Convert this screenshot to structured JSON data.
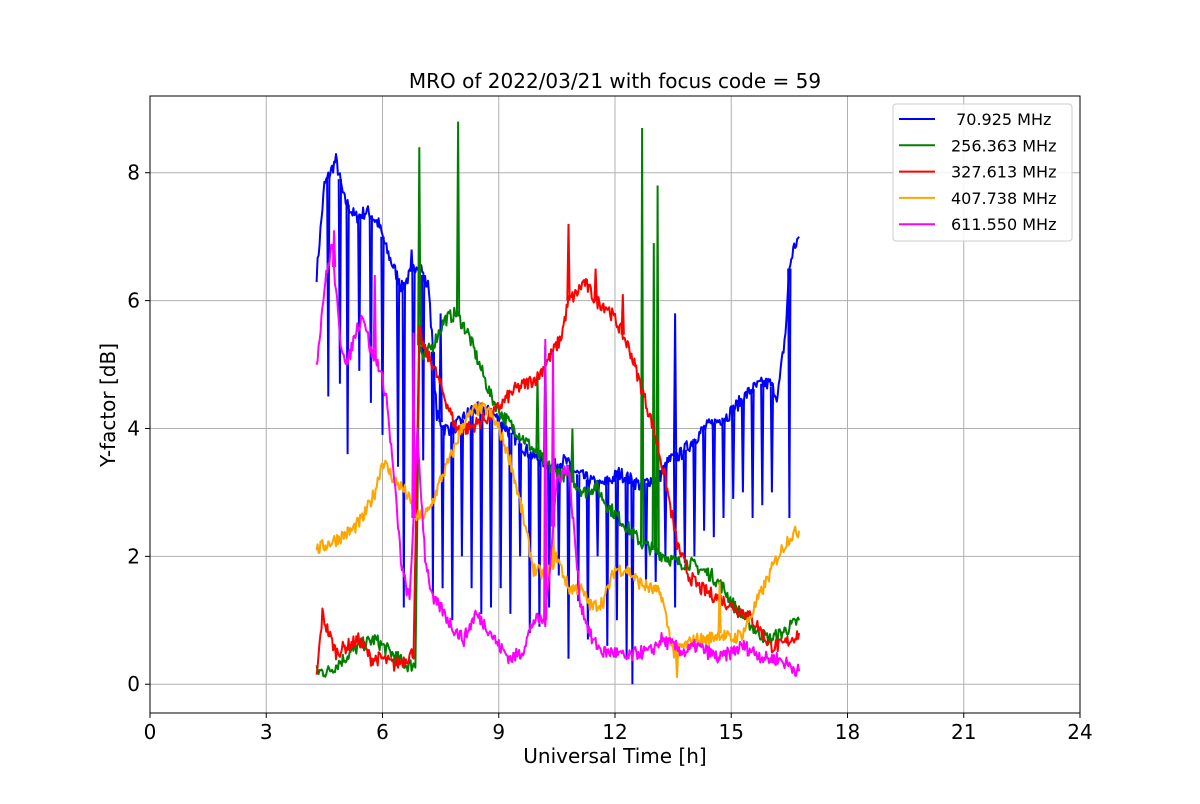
{
  "chart_data": {
    "type": "line",
    "title": "MRO of 2022/03/21 with focus code = 59",
    "xlabel": "Universal Time [h]",
    "ylabel": "Y-factor [dB]",
    "xlim": [
      0,
      24
    ],
    "ylim": [
      -0.45,
      9.2
    ],
    "xticks": [
      0,
      3,
      6,
      9,
      12,
      15,
      18,
      21,
      24
    ],
    "yticks": [
      0,
      2,
      4,
      6,
      8
    ],
    "grid": true,
    "legend_position": "top-right",
    "series": [
      {
        "name": " 70.925 MHz",
        "color": "#0000ff",
        "x": [
          4.3,
          4.5,
          4.8,
          5.0,
          5.3,
          5.6,
          5.9,
          6.1,
          6.3,
          6.5,
          6.7,
          6.9,
          7.0,
          7.1,
          7.2,
          7.4,
          7.6,
          7.8,
          8.0,
          8.3,
          8.6,
          8.9,
          9.2,
          9.5,
          9.8,
          10.1,
          10.4,
          10.7,
          11.0,
          11.3,
          11.6,
          11.9,
          12.1,
          12.4,
          12.7,
          12.9,
          13.1,
          13.4,
          13.7,
          14.0,
          14.3,
          14.6,
          14.9,
          15.2,
          15.5,
          15.8,
          16.0,
          16.1,
          16.2,
          16.4,
          16.5,
          16.6,
          16.75
        ],
        "y": [
          6.4,
          7.8,
          8.2,
          7.6,
          7.3,
          7.4,
          7.2,
          6.8,
          6.5,
          6.2,
          6.4,
          6.6,
          6.5,
          6.3,
          6.2,
          4.2,
          4.0,
          4.0,
          4.1,
          4.3,
          4.3,
          4.2,
          4.0,
          3.8,
          3.6,
          3.5,
          3.4,
          3.5,
          3.3,
          3.2,
          3.1,
          3.2,
          3.3,
          3.2,
          3.1,
          3.2,
          3.2,
          3.5,
          3.6,
          3.8,
          4.0,
          4.1,
          4.2,
          4.4,
          4.6,
          4.7,
          4.7,
          4.6,
          4.5,
          5.5,
          6.5,
          6.8,
          7.0
        ],
        "dips": [
          [
            4.6,
            4.5
          ],
          [
            4.9,
            4.7
          ],
          [
            5.1,
            3.6
          ],
          [
            5.4,
            4.9
          ],
          [
            5.7,
            4.4
          ],
          [
            6.0,
            3.9
          ],
          [
            6.4,
            3.4
          ],
          [
            6.55,
            1.2
          ],
          [
            6.8,
            2.7
          ],
          [
            7.05,
            3.5
          ],
          [
            7.3,
            1.4
          ],
          [
            7.55,
            1.5
          ],
          [
            7.8,
            1.0
          ],
          [
            8.05,
            2.0
          ],
          [
            8.3,
            1.5
          ],
          [
            8.55,
            1.1
          ],
          [
            8.8,
            1.2
          ],
          [
            9.05,
            1.5
          ],
          [
            9.3,
            1.1
          ],
          [
            9.55,
            2.0
          ],
          [
            9.8,
            0.8
          ],
          [
            10.05,
            0.9
          ],
          [
            10.3,
            1.2
          ],
          [
            10.55,
            1.7
          ],
          [
            10.8,
            0.4
          ],
          [
            11.05,
            1.3
          ],
          [
            11.3,
            0.7
          ],
          [
            11.55,
            2.0
          ],
          [
            11.8,
            0.6
          ],
          [
            12.05,
            1.0
          ],
          [
            12.3,
            0.4
          ],
          [
            12.45,
            0.0
          ],
          [
            12.8,
            1.6
          ],
          [
            13.05,
            1.6
          ],
          [
            13.3,
            2.0
          ],
          [
            13.55,
            1.2
          ],
          [
            13.8,
            1.9
          ],
          [
            14.05,
            2.0
          ],
          [
            14.3,
            2.4
          ],
          [
            14.55,
            2.3
          ],
          [
            14.8,
            2.6
          ],
          [
            15.05,
            2.9
          ],
          [
            15.3,
            3.0
          ],
          [
            15.55,
            2.6
          ],
          [
            15.8,
            2.8
          ],
          [
            16.05,
            3.0
          ],
          [
            16.5,
            2.6
          ]
        ],
        "spikes": [
          [
            6.75,
            6.8
          ],
          [
            7.5,
            5.8
          ],
          [
            10.2,
            5.3
          ],
          [
            13.55,
            5.8
          ]
        ]
      },
      {
        "name": "256.363 MHz",
        "color": "#008000",
        "x": [
          4.3,
          4.6,
          5.0,
          5.4,
          5.8,
          6.2,
          6.6,
          6.85,
          6.95,
          7.05,
          7.3,
          7.6,
          7.9,
          8.2,
          8.5,
          8.8,
          9.1,
          9.4,
          9.7,
          10.0,
          10.3,
          10.6,
          10.9,
          11.2,
          11.5,
          11.8,
          12.1,
          12.4,
          12.7,
          13.0,
          13.3,
          13.6,
          13.9,
          14.2,
          14.5,
          14.8,
          15.1,
          15.4,
          15.7,
          16.0,
          16.3,
          16.75
        ],
        "y": [
          0.2,
          0.2,
          0.4,
          0.6,
          0.7,
          0.5,
          0.3,
          0.3,
          5.3,
          5.1,
          5.3,
          5.7,
          5.8,
          5.5,
          5.0,
          4.5,
          4.2,
          4.0,
          3.8,
          3.6,
          3.4,
          3.3,
          3.2,
          3.0,
          3.1,
          2.8,
          2.6,
          2.4,
          2.2,
          2.1,
          2.0,
          1.9,
          1.9,
          1.8,
          1.7,
          1.5,
          1.2,
          1.0,
          0.8,
          0.7,
          0.8,
          1.0
        ],
        "dips": [],
        "spikes": [
          [
            6.95,
            8.4
          ],
          [
            7.95,
            8.8
          ],
          [
            10.0,
            4.8
          ],
          [
            10.9,
            4.0
          ],
          [
            12.7,
            8.7
          ],
          [
            13.1,
            7.8
          ],
          [
            13.0,
            6.9
          ]
        ]
      },
      {
        "name": "327.613 MHz",
        "color": "#ff0000",
        "x": [
          4.3,
          4.45,
          4.55,
          4.8,
          5.1,
          5.4,
          5.7,
          6.0,
          6.3,
          6.6,
          6.8,
          6.95,
          7.1,
          7.3,
          7.6,
          7.9,
          8.2,
          8.5,
          8.8,
          9.1,
          9.4,
          9.7,
          10.0,
          10.3,
          10.6,
          10.8,
          11.0,
          11.2,
          11.5,
          11.8,
          12.1,
          12.4,
          12.7,
          13.0,
          13.3,
          13.6,
          13.9,
          14.2,
          14.5,
          14.8,
          15.1,
          15.4,
          15.7,
          16.0,
          16.3,
          16.75
        ],
        "y": [
          0.1,
          1.1,
          0.9,
          0.5,
          0.6,
          0.7,
          0.4,
          0.4,
          0.3,
          0.4,
          0.5,
          5.5,
          5.2,
          5.0,
          4.5,
          4.0,
          4.0,
          4.1,
          4.2,
          4.4,
          4.6,
          4.7,
          4.8,
          5.1,
          5.4,
          6.0,
          6.1,
          6.3,
          6.0,
          5.9,
          5.6,
          5.2,
          4.6,
          4.0,
          3.2,
          2.2,
          1.7,
          1.5,
          1.4,
          1.3,
          1.2,
          1.1,
          0.9,
          0.6,
          0.6,
          0.8
        ],
        "dips": [],
        "spikes": [
          [
            10.8,
            7.2
          ],
          [
            11.5,
            6.5
          ],
          [
            12.2,
            6.1
          ]
        ]
      },
      {
        "name": "407.738 MHz",
        "color": "#ffa500",
        "x": [
          4.3,
          4.6,
          4.9,
          5.2,
          5.5,
          5.8,
          6.0,
          6.3,
          6.6,
          6.9,
          7.2,
          7.5,
          7.8,
          8.1,
          8.4,
          8.7,
          9.0,
          9.3,
          9.6,
          9.9,
          10.2,
          10.5,
          10.8,
          11.1,
          11.4,
          11.7,
          12.0,
          12.3,
          12.6,
          12.9,
          13.2,
          13.5,
          13.8,
          14.1,
          14.4,
          14.7,
          15.0,
          15.3,
          15.6,
          15.9,
          16.2,
          16.5,
          16.75
        ],
        "y": [
          2.1,
          2.2,
          2.3,
          2.4,
          2.6,
          3.0,
          3.5,
          3.2,
          3.0,
          2.6,
          2.7,
          3.2,
          3.6,
          4.1,
          4.3,
          4.3,
          4.0,
          3.5,
          2.7,
          1.8,
          1.7,
          2.0,
          1.5,
          1.5,
          1.2,
          1.3,
          1.8,
          1.8,
          1.6,
          1.5,
          1.4,
          0.5,
          0.6,
          0.7,
          0.7,
          0.8,
          0.7,
          0.8,
          1.2,
          1.6,
          2.0,
          2.3,
          2.4
        ],
        "dips": [],
        "spikes": [
          [
            10.4,
            2.7
          ],
          [
            13.6,
            0.1
          ],
          [
            14.7,
            1.6
          ]
        ]
      },
      {
        "name": "611.550 MHz",
        "color": "#ff00ff",
        "x": [
          4.3,
          4.5,
          4.7,
          4.9,
          5.1,
          5.3,
          5.5,
          5.7,
          5.9,
          6.1,
          6.3,
          6.5,
          6.7,
          6.9,
          7.1,
          7.3,
          7.5,
          7.8,
          8.1,
          8.4,
          8.7,
          9.0,
          9.3,
          9.6,
          9.9,
          10.2,
          10.5,
          10.8,
          11.1,
          11.4,
          11.7,
          12.0,
          12.3,
          12.6,
          12.9,
          13.2,
          13.5,
          13.8,
          14.1,
          14.4,
          14.7,
          15.0,
          15.3,
          15.6,
          15.9,
          16.2,
          16.5,
          16.75
        ],
        "y": [
          5.0,
          6.2,
          6.9,
          5.4,
          5.0,
          5.5,
          5.8,
          5.2,
          5.0,
          4.5,
          3.2,
          1.8,
          1.3,
          3.9,
          2.0,
          1.3,
          1.2,
          0.9,
          0.7,
          1.1,
          0.9,
          0.6,
          0.4,
          0.5,
          1.0,
          1.0,
          3.2,
          3.4,
          1.3,
          0.7,
          0.5,
          0.5,
          0.4,
          0.5,
          0.5,
          0.7,
          0.6,
          0.5,
          0.6,
          0.5,
          0.4,
          0.5,
          0.6,
          0.5,
          0.4,
          0.4,
          0.3,
          0.2
        ],
        "dips": [],
        "spikes": [
          [
            4.75,
            7.1
          ],
          [
            5.8,
            6.4
          ],
          [
            10.2,
            5.4
          ],
          [
            10.4,
            5.2
          ],
          [
            6.8,
            5.5
          ]
        ]
      }
    ]
  }
}
